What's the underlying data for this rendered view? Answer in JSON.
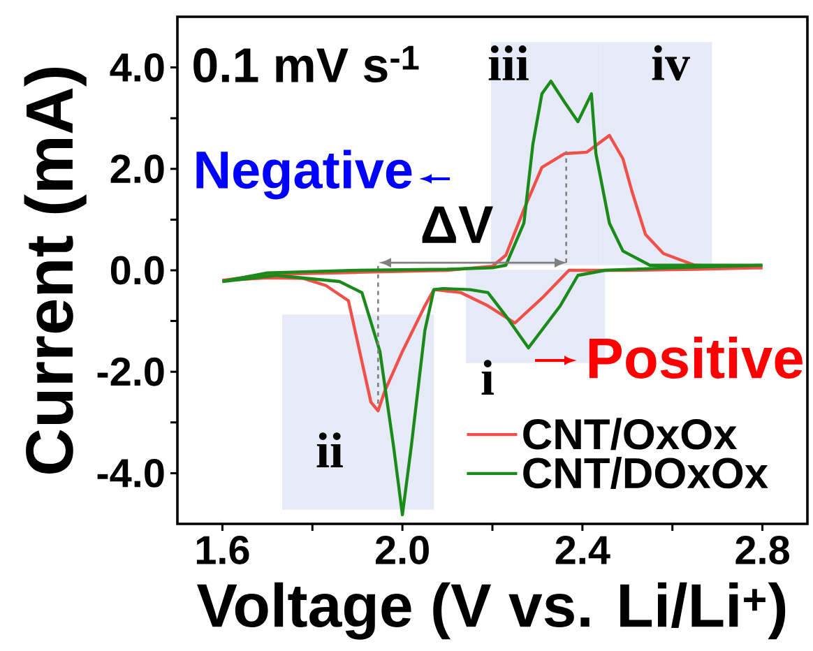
{
  "chart_data": {
    "type": "line",
    "xlabel": "Voltage (V vs. Li/Li$^{+}$)",
    "ylabel": "Current (mA)",
    "xlim": [
      1.5,
      2.9
    ],
    "ylim": [
      -5,
      5
    ],
    "xticks": [
      {
        "value": 1.6,
        "label": "1.6"
      },
      {
        "value": 1.8,
        "label": null
      },
      {
        "value": 2,
        "label": "2.0"
      },
      {
        "value": 2.2,
        "label": null
      },
      {
        "value": 2.4,
        "label": "2.4"
      },
      {
        "value": 2.6,
        "label": null
      },
      {
        "value": 2.8,
        "label": "2.8"
      }
    ],
    "yticks": [
      {
        "value": -4,
        "label": "-4.0"
      },
      {
        "value": -3,
        "label": null
      },
      {
        "value": -2,
        "label": "-2.0"
      },
      {
        "value": -1,
        "label": null
      },
      {
        "value": 0,
        "label": "0.0"
      },
      {
        "value": 1,
        "label": null
      },
      {
        "value": 2,
        "label": "2.0"
      },
      {
        "value": 3,
        "label": null
      },
      {
        "value": 4,
        "label": "4.0"
      }
    ],
    "legend": "bottom right",
    "grid": false,
    "line_style": "solid",
    "marker": "none",
    "annotations": [
      "0.1 mV s$^{-1}$",
      "Negative",
      "Positive",
      {
        "text": "ΔV",
        "x": 2.155,
        "y": 0.15
      }
    ],
    "bands": [
      {
        "axis": "x",
        "from": 2.141,
        "to": 2.45,
        "label": "i",
        "color": "#e6eaf6"
      },
      {
        "axis": "x",
        "from": 1.733,
        "to": 2.07,
        "label": "ii",
        "color": "#e6eaf6"
      },
      {
        "axis": "x",
        "from": 2.197,
        "to": 2.44,
        "label": "iii",
        "color": "#e6eaf6"
      },
      {
        "axis": "x",
        "from": 2.44,
        "to": 2.688,
        "label": "iv",
        "color": "#e6eaf6"
      }
    ],
    "series": [
      {
        "name": "CNT/OxOx",
        "color": "#f0504a",
        "x": [
          1.6,
          1.7,
          1.78,
          1.83,
          1.88,
          1.9,
          1.93,
          1.946,
          1.96,
          2.0,
          2.05,
          2.07,
          2.13,
          2.19,
          2.25,
          2.31,
          2.37,
          2.5,
          2.65,
          2.8
        ],
        "values": [
          -0.2,
          -0.15,
          -0.16,
          -0.3,
          -0.6,
          -1.4,
          -2.6,
          -2.77,
          -2.4,
          -1.6,
          -0.7,
          -0.38,
          -0.44,
          -0.7,
          -1.04,
          -0.55,
          0.0,
          0.0,
          0.02,
          0.05
        ]
      },
      {
        "color": "#f0504a",
        "x": [
          1.6,
          1.7,
          1.9,
          2.1,
          2.2,
          2.23,
          2.27,
          2.31,
          2.36,
          2.41,
          2.46,
          2.49,
          2.51,
          2.54,
          2.58,
          2.65,
          2.8
        ],
        "values": [
          -0.2,
          -0.08,
          -0.04,
          0.0,
          0.08,
          0.3,
          1.2,
          2.03,
          2.3,
          2.33,
          2.66,
          2.2,
          1.56,
          0.71,
          0.33,
          0.1,
          0.05
        ]
      },
      {
        "name": "CNT/DOxOx",
        "color": "#1a8a1a",
        "x": [
          1.6,
          1.72,
          1.86,
          1.91,
          1.95,
          1.98,
          2.0,
          2.02,
          2.05,
          2.07,
          2.09,
          2.15,
          2.19,
          2.23,
          2.28,
          2.35,
          2.39,
          2.45,
          2.6,
          2.8
        ],
        "values": [
          -0.22,
          -0.1,
          -0.22,
          -0.44,
          -1.6,
          -3.45,
          -4.82,
          -3.45,
          -1.18,
          -0.38,
          -0.36,
          -0.38,
          -0.44,
          -0.9,
          -1.53,
          -0.71,
          -0.1,
          0.0,
          0.05,
          0.1
        ]
      },
      {
        "type": "line",
        "line_style": "dashed",
        "color": "#808080",
        "x": [
          1.946,
          1.946
        ],
        "values": [
          -2.63,
          0.15
        ]
      },
      {
        "type": "line",
        "line_style": "dashed",
        "color": "#808080",
        "x": [
          2.364,
          2.364
        ],
        "values": [
          0.15,
          2.35
        ]
      },
      {
        "color": "#1a8a1a",
        "x": [
          1.6,
          1.7,
          1.9,
          2.1,
          2.2,
          2.23,
          2.27,
          2.29,
          2.31,
          2.33,
          2.36,
          2.39,
          2.42,
          2.43,
          2.46,
          2.49,
          2.55,
          2.65,
          2.8
        ],
        "values": [
          -0.22,
          -0.05,
          0.0,
          0.02,
          0.05,
          0.1,
          0.93,
          2.49,
          3.48,
          3.73,
          3.32,
          2.93,
          3.48,
          2.3,
          0.93,
          0.38,
          0.1,
          0.1,
          0.1
        ]
      }
    ]
  }
}
